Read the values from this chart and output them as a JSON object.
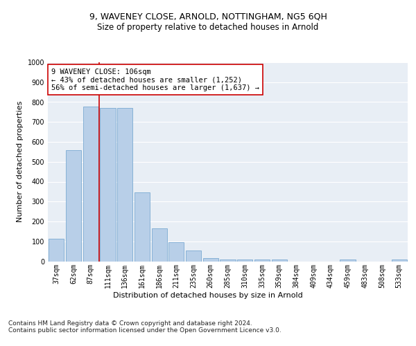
{
  "title": "9, WAVENEY CLOSE, ARNOLD, NOTTINGHAM, NG5 6QH",
  "subtitle": "Size of property relative to detached houses in Arnold",
  "xlabel": "Distribution of detached houses by size in Arnold",
  "ylabel": "Number of detached properties",
  "categories": [
    "37sqm",
    "62sqm",
    "87sqm",
    "111sqm",
    "136sqm",
    "161sqm",
    "186sqm",
    "211sqm",
    "235sqm",
    "260sqm",
    "285sqm",
    "310sqm",
    "335sqm",
    "359sqm",
    "384sqm",
    "409sqm",
    "434sqm",
    "459sqm",
    "483sqm",
    "508sqm",
    "533sqm"
  ],
  "values": [
    112,
    558,
    778,
    770,
    770,
    345,
    165,
    97,
    53,
    17,
    10,
    10,
    10,
    8,
    0,
    0,
    0,
    8,
    0,
    0,
    8
  ],
  "bar_color": "#b8cfe8",
  "bar_edge_color": "#6a9fcc",
  "vline_x": 2.5,
  "vline_color": "#cc0000",
  "annotation_text": "9 WAVENEY CLOSE: 106sqm\n← 43% of detached houses are smaller (1,252)\n56% of semi-detached houses are larger (1,637) →",
  "annotation_box_color": "#ffffff",
  "annotation_box_edge": "#cc0000",
  "background_color": "#e8eef5",
  "ylim": [
    0,
    1000
  ],
  "yticks": [
    0,
    100,
    200,
    300,
    400,
    500,
    600,
    700,
    800,
    900,
    1000
  ],
  "footer": "Contains HM Land Registry data © Crown copyright and database right 2024.\nContains public sector information licensed under the Open Government Licence v3.0.",
  "title_fontsize": 9,
  "subtitle_fontsize": 8.5,
  "xlabel_fontsize": 8,
  "ylabel_fontsize": 8,
  "tick_fontsize": 7,
  "annotation_fontsize": 7.5,
  "footer_fontsize": 6.5
}
